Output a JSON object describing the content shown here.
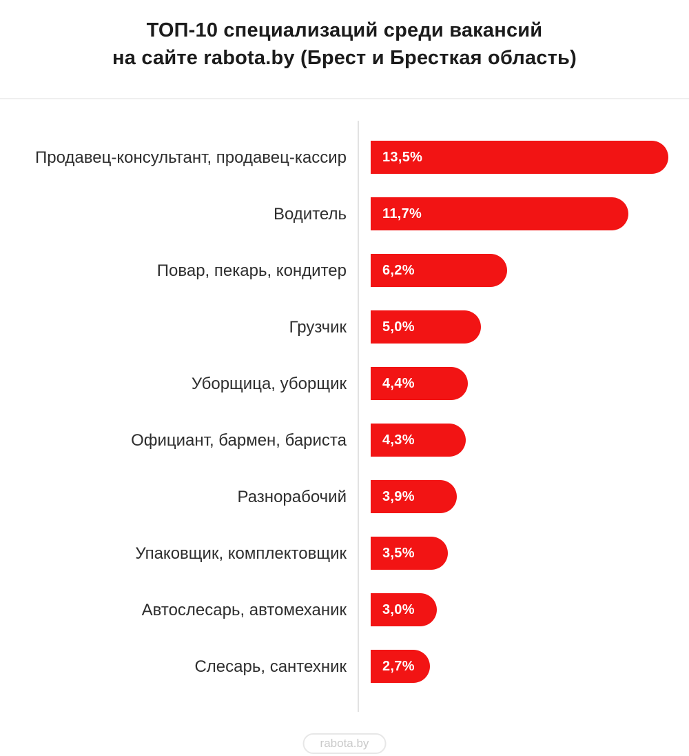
{
  "title": {
    "line1": "ТОП-10 специализаций среди вакансий",
    "line2": "на сайте rabota.by (Брест и Бресткая область)"
  },
  "footer": {
    "badge_label": "rabota.by"
  },
  "colors": {
    "bar": "#F21414",
    "axis_line": "#e2e2e2",
    "divider": "#efefef",
    "title_text": "#1b1b1b",
    "category_text": "#2e2e2e",
    "value_text": "#ffffff",
    "badge_border": "#e7e7e7",
    "badge_text": "#c9c9c9"
  },
  "chart_data": {
    "type": "bar",
    "orientation": "horizontal",
    "title": "ТОП-10 специализаций среди вакансий на сайте rabota.by (Брест и Бресткая область)",
    "categories": [
      "Продавец-консультант, продавец-кассир",
      "Водитель",
      "Повар, пекарь, кондитер",
      "Грузчик",
      "Уборщица, уборщик",
      "Официант, бармен, бариста",
      "Разнорабочий",
      "Упаковщик, комплектовщик",
      "Автослесарь, автомеханик",
      "Слесарь, сантехник"
    ],
    "values": [
      13.5,
      11.7,
      6.2,
      5.0,
      4.4,
      4.3,
      3.9,
      3.5,
      3.0,
      2.7
    ],
    "value_labels": [
      "13,5%",
      "11,7%",
      "6,2%",
      "5,0%",
      "4,4%",
      "4,3%",
      "3,9%",
      "3,5%",
      "3,0%",
      "2,7%"
    ],
    "xlabel": "",
    "ylabel": "",
    "xlim": [
      0,
      13.5
    ],
    "grid": false,
    "legend": false,
    "value_labels_position": "inside-start",
    "bar_color": "#F21414"
  }
}
